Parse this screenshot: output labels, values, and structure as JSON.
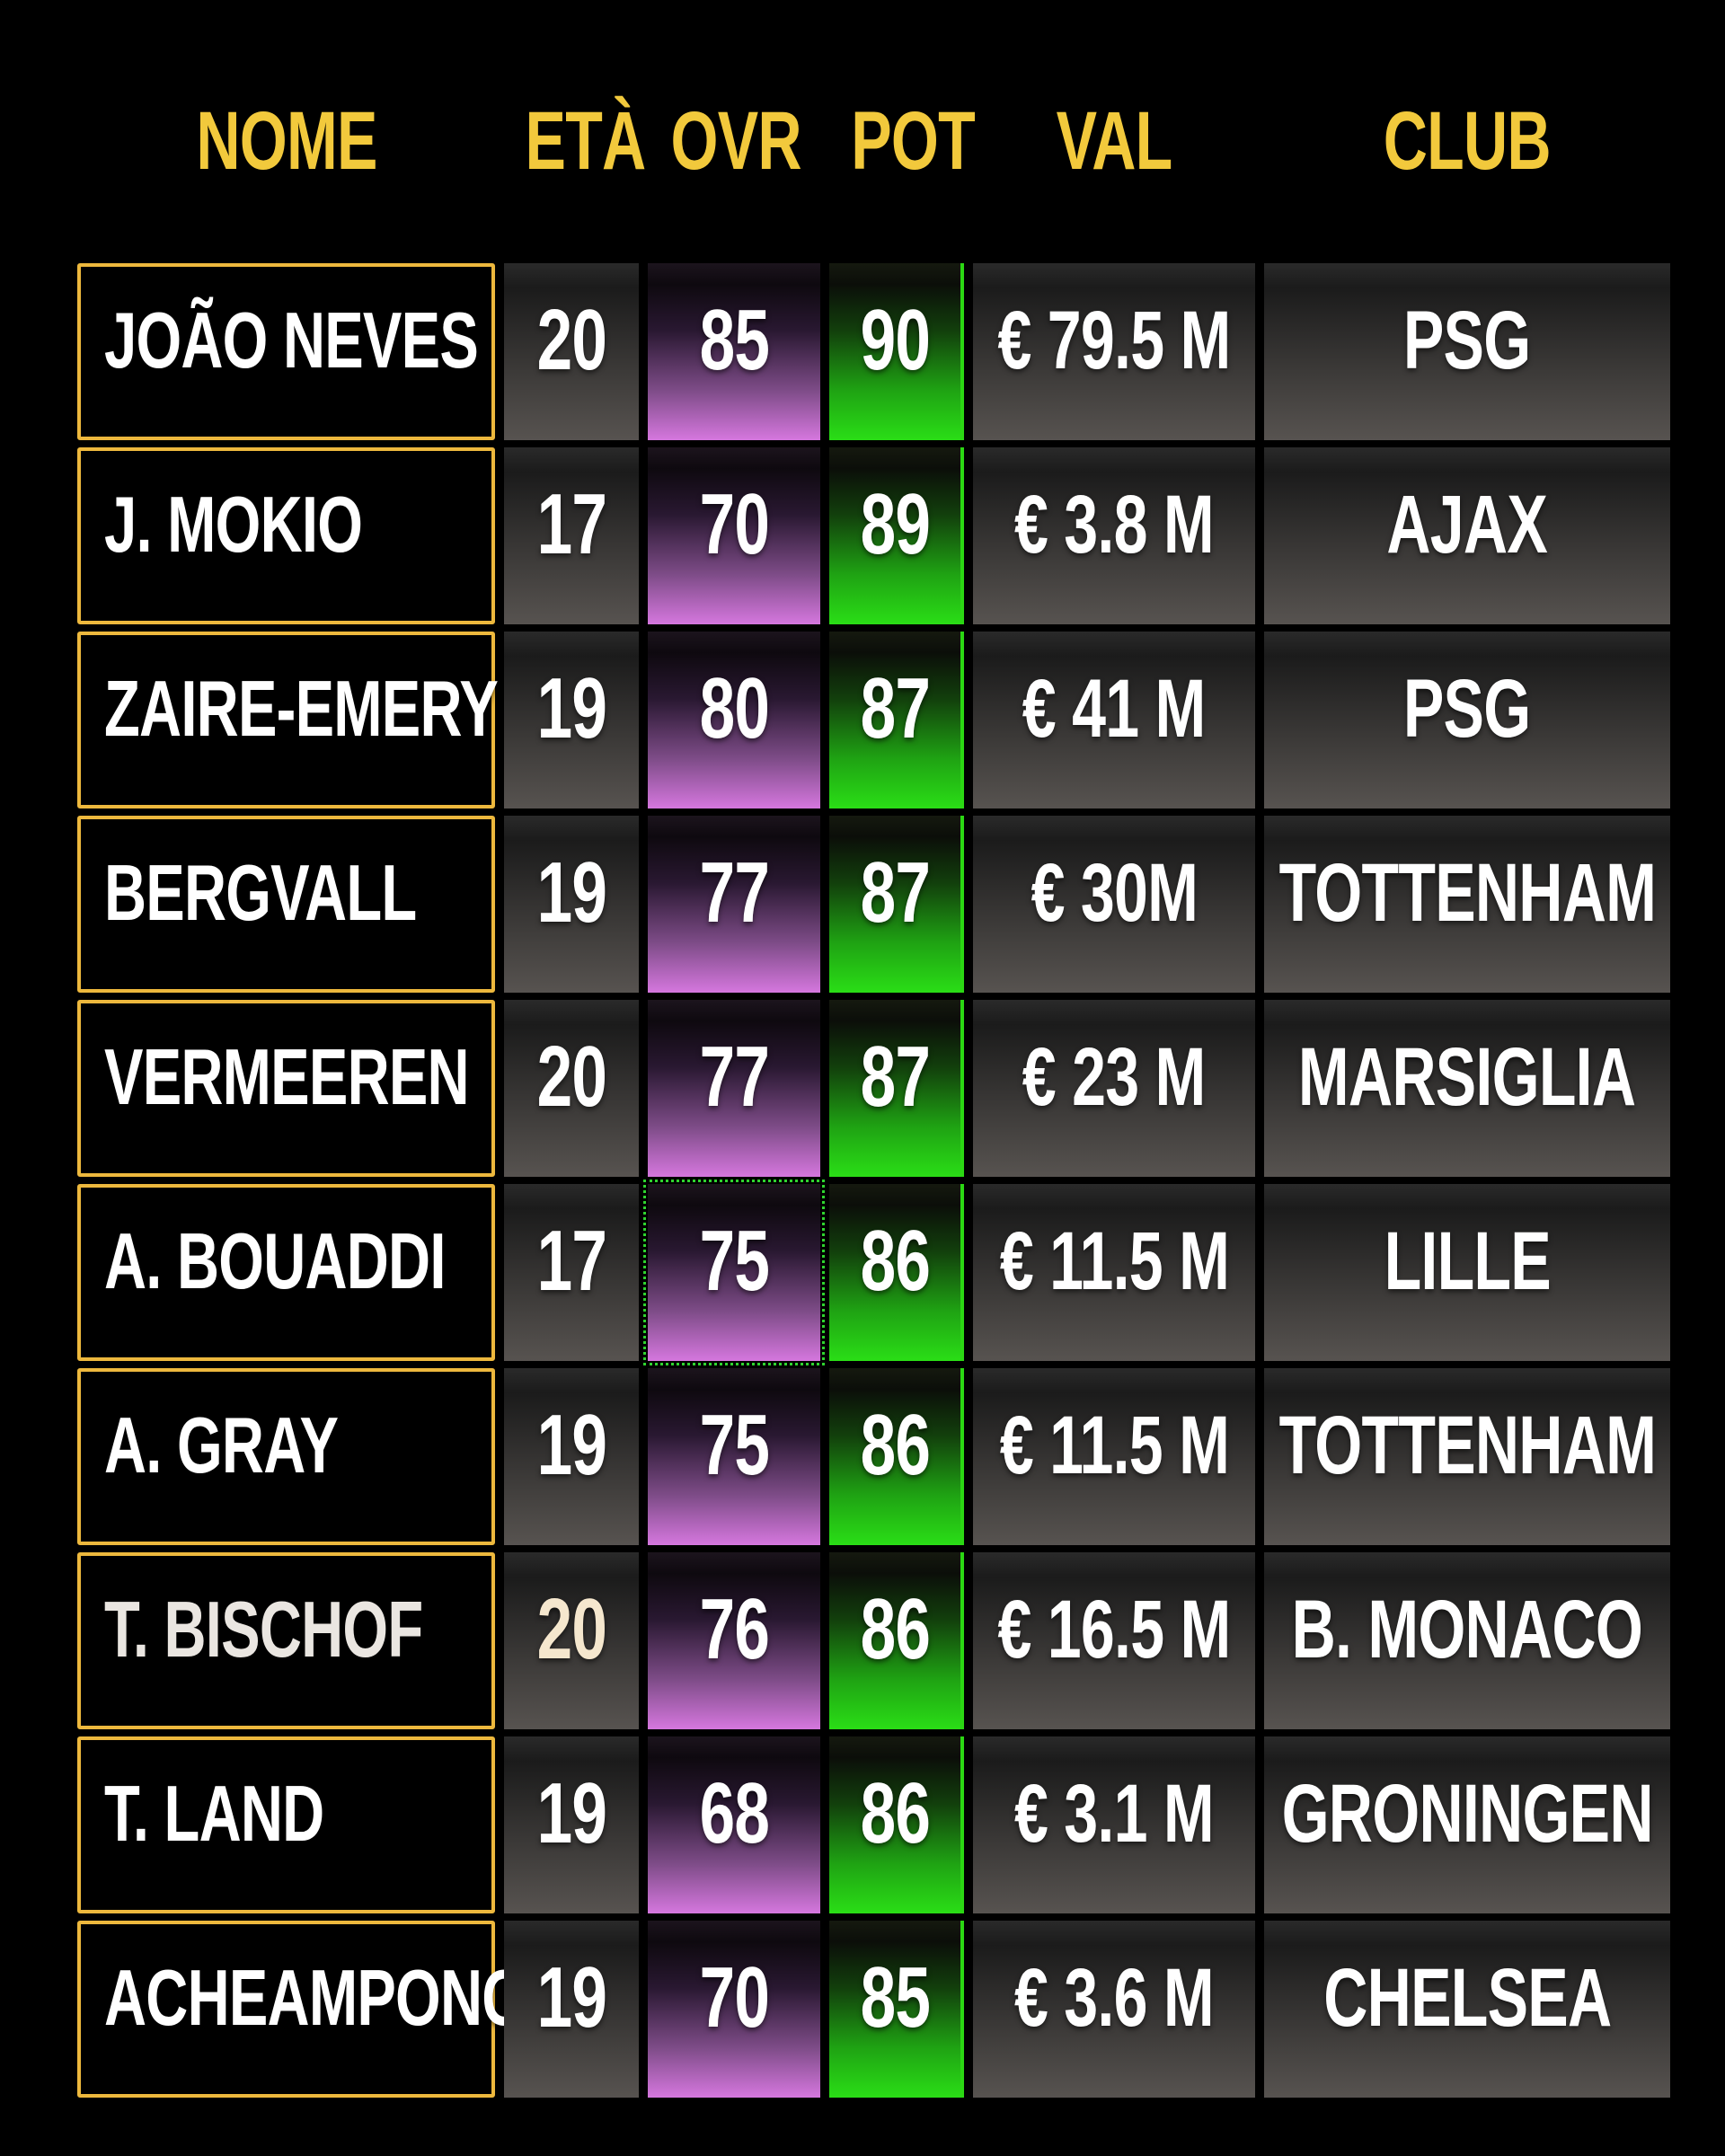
{
  "header": {
    "nome": "NOME",
    "eta": "ETÀ",
    "ovr": "OVR",
    "pot": "POT",
    "val": "VAL",
    "club": "CLUB"
  },
  "theme": {
    "background": "#000000",
    "header_text_yellow": "#F2C93C",
    "name_box_gold_border": "#EDB83D",
    "body_text": "#FFFFFF",
    "ovr_gradient_bottom_purple": "#D577DE",
    "pot_gradient_bottom_green": "#2ADE16",
    "pot_right_edge_green": "#2BD713",
    "selection_marquee_green": "#2FD42F",
    "gray_cell_bottom": "#575350",
    "bischof_age_cream": "#F5E7CE"
  },
  "rows": [
    {
      "name": "JOÃO NEVES",
      "eta": "20",
      "ovr": "85",
      "pot": "90",
      "val": "€ 79.5 M",
      "club": "PSG"
    },
    {
      "name": "J. MOKIO",
      "eta": "17",
      "ovr": "70",
      "pot": "89",
      "val": "€ 3.8 M",
      "club": "AJAX"
    },
    {
      "name": "ZAIRE-EMERY",
      "eta": "19",
      "ovr": "80",
      "pot": "87",
      "val": "€ 41 M",
      "club": "PSG"
    },
    {
      "name": "BERGVALL",
      "eta": "19",
      "ovr": "77",
      "pot": "87",
      "val": "€ 30M",
      "club": "TOTTENHAM"
    },
    {
      "name": "VERMEEREN",
      "eta": "20",
      "ovr": "77",
      "pot": "87",
      "val": "€ 23 M",
      "club": "MARSIGLIA"
    },
    {
      "name": "A. BOUADDI",
      "eta": "17",
      "ovr": "75",
      "pot": "86",
      "val": "€ 11.5 M",
      "club": "LILLE",
      "ovr_selected": true
    },
    {
      "name": "A. GRAY",
      "eta": "19",
      "ovr": "75",
      "pot": "86",
      "val": "€ 11.5 M",
      "club": "TOTTENHAM"
    },
    {
      "name": "T. BISCHOF",
      "eta": "20",
      "ovr": "76",
      "pot": "86",
      "val": "€ 16.5 M",
      "club": "B. MONACO",
      "eta_color": "#F5E7CE",
      "name_color": "#EAE6E1"
    },
    {
      "name": "T. LAND",
      "eta": "19",
      "ovr": "68",
      "pot": "86",
      "val": "€ 3.1 M",
      "club": "GRONINGEN"
    },
    {
      "name": "ACHEAMPONG",
      "eta": "19",
      "ovr": "70",
      "pot": "85",
      "val": "€ 3.6 M",
      "club": "CHELSEA"
    }
  ]
}
